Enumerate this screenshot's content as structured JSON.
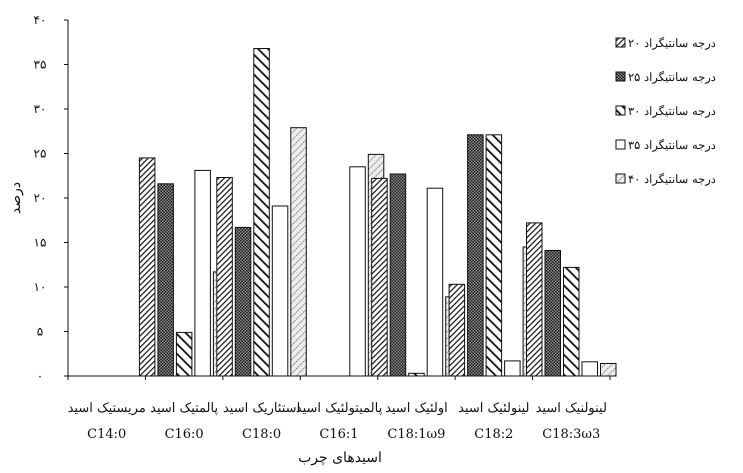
{
  "chart_data": {
    "type": "bar",
    "title": "",
    "xlabel": "اسیدهای چرب",
    "ylabel": "درصد",
    "ylim": [
      0,
      40
    ],
    "y_ticks": [
      0,
      5,
      10,
      15,
      20,
      25,
      30,
      35,
      40
    ],
    "y_tick_labels": [
      "۰",
      "۵",
      "۱۰",
      "۱۵",
      "۲۰",
      "۲۵",
      "۳۰",
      "۳۵",
      "۴۰"
    ],
    "grid": false,
    "legend_position": "right",
    "categories": [
      {
        "name": "مریستیک اسید",
        "code": "C14:0"
      },
      {
        "name": "پالمتیک اسید",
        "code": "C16:0"
      },
      {
        "name": "استئاریک اسید",
        "code": "C18:0"
      },
      {
        "name": "پالمیتولئیک اسید",
        "code": "C16:1"
      },
      {
        "name": "اولئیک اسید",
        "code": "C18:1ω9"
      },
      {
        "name": "لینولئیک اسید",
        "code": "C18:2"
      },
      {
        "name": "لینولنیک اسید",
        "code": "C18:3ω3"
      }
    ],
    "series": [
      {
        "name": "درجه سانتیگراد ۲۰",
        "pattern": "diag-dense",
        "values": [
          0,
          24.5,
          22.3,
          0,
          22.2,
          10.3,
          17.2
        ]
      },
      {
        "name": "درجه سانتیگراد ۲۵",
        "pattern": "checker",
        "values": [
          0,
          21.6,
          16.7,
          0,
          22.7,
          27.1,
          14.1
        ]
      },
      {
        "name": "درجه سانتیگراد ۳۰",
        "pattern": "diag-wide",
        "values": [
          0,
          4.9,
          36.8,
          0,
          0.3,
          27.1,
          12.2
        ]
      },
      {
        "name": "درجه سانتیگراد ۳۵",
        "pattern": "white",
        "values": [
          0,
          23.1,
          19.1,
          23.5,
          21.1,
          1.7,
          1.6
        ]
      },
      {
        "name": "درجه سانتیگراد ۴۰",
        "pattern": "dots",
        "values": [
          0,
          11.7,
          27.9,
          24.9,
          8.9,
          14.5,
          1.4
        ]
      }
    ]
  }
}
